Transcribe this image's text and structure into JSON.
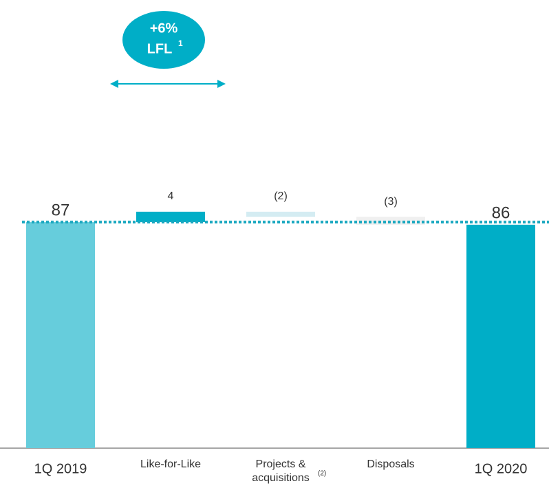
{
  "chart_data": {
    "type": "waterfall",
    "annotation": [
      "+6%",
      "LFL",
      "1"
    ],
    "categories": [
      [
        "1Q 2019"
      ],
      [
        "Like-for-Like"
      ],
      [
        "Projects &",
        "acquisitions"
      ],
      [
        "Disposals"
      ],
      [
        "1Q 2020"
      ]
    ],
    "category_notes": [
      null,
      null,
      "(2)",
      null,
      null
    ],
    "values": [
      87,
      4,
      -2,
      -3,
      86
    ],
    "value_labels": [
      "87",
      "4",
      "(2)",
      "(3)",
      "86"
    ],
    "measure": [
      "absolute",
      "relative",
      "relative",
      "relative",
      "total"
    ],
    "colors": [
      "#66cddc",
      "#00aec7",
      "#d4ecf2",
      "#f0f0f0",
      "#00aec7"
    ],
    "reference_color": "#1aa8c0",
    "ylim": [
      0,
      100
    ]
  }
}
